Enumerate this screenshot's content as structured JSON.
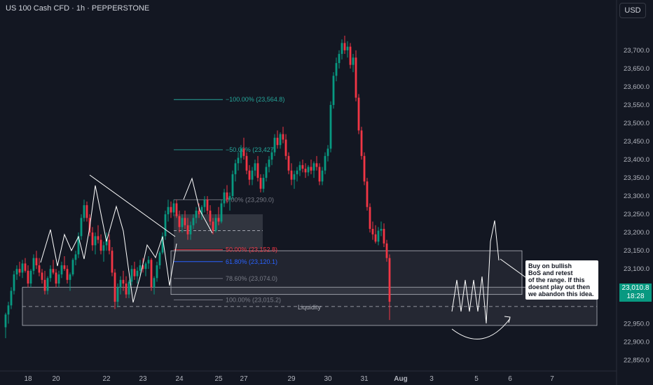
{
  "header": {
    "title": "US 100 Cash CFD · 1h · PEPPERSTONE"
  },
  "controls": {
    "currency": "USD"
  },
  "price_tag": {
    "price": "23,010.8",
    "countdown": "18:28"
  },
  "colors": {
    "background": "#131722",
    "up": "#089981",
    "down": "#f23645",
    "fib_teal": "#26a69a",
    "fib_red": "#f23645",
    "fib_gray": "#787b86"
  },
  "annotations": {
    "note": [
      "Buy on bullish",
      "BoS and retest",
      "of the range. If this",
      "doesnt play out then",
      "we abandon this idea."
    ],
    "liquidity": "Liquidity"
  },
  "chart_data": {
    "type": "candlestick",
    "ylim": [
      22820,
      23790
    ],
    "y_ticks": [
      {
        "value": 23700,
        "label": "23,700.0"
      },
      {
        "value": 23650,
        "label": "23,650.0"
      },
      {
        "value": 23600,
        "label": "23,600.0"
      },
      {
        "value": 23550,
        "label": "23,550.0"
      },
      {
        "value": 23500,
        "label": "23,500.0"
      },
      {
        "value": 23450,
        "label": "23,450.0"
      },
      {
        "value": 23400,
        "label": "23,400.0"
      },
      {
        "value": 23350,
        "label": "23,350.0"
      },
      {
        "value": 23300,
        "label": "23,300.0"
      },
      {
        "value": 23250,
        "label": "23,250.0"
      },
      {
        "value": 23200,
        "label": "23,200.0"
      },
      {
        "value": 23150,
        "label": "23,150.0"
      },
      {
        "value": 23100,
        "label": "23,100.0"
      },
      {
        "value": 23050,
        "label": "23,050.0"
      },
      {
        "value": 22950,
        "label": "22,950.0"
      },
      {
        "value": 22900,
        "label": "22,900.0"
      },
      {
        "value": 22850,
        "label": "22,850.0"
      }
    ],
    "x_ticks": [
      {
        "index": 8,
        "label": "18",
        "bold": false
      },
      {
        "index": 18,
        "label": "20",
        "bold": false
      },
      {
        "index": 36,
        "label": "22",
        "bold": false
      },
      {
        "index": 49,
        "label": "23",
        "bold": false
      },
      {
        "index": 62,
        "label": "24",
        "bold": false
      },
      {
        "index": 76,
        "label": "25",
        "bold": false
      },
      {
        "index": 85,
        "label": "27",
        "bold": false
      },
      {
        "index": 102,
        "label": "29",
        "bold": false
      },
      {
        "index": 115,
        "label": "30",
        "bold": false
      },
      {
        "index": 128,
        "label": "31",
        "bold": false
      },
      {
        "index": 141,
        "label": "Aug",
        "bold": true
      },
      {
        "index": 152,
        "label": "3",
        "bold": false
      },
      {
        "index": 168,
        "label": "5",
        "bold": false
      },
      {
        "index": 180,
        "label": "6",
        "bold": false
      },
      {
        "index": 195,
        "label": "7",
        "bold": false
      }
    ],
    "fib_levels": [
      {
        "ratio_label": "−100.00%",
        "value": 23564.8,
        "text": "(23,564.8)",
        "color": "#26a69a",
        "tone": "teal"
      },
      {
        "ratio_label": "−50.00%",
        "value": 23427,
        "text": "(23,427",
        "color": "#26a69a",
        "tone": "teal"
      },
      {
        "ratio_label": "0.00%",
        "value": 23290,
        "text": "(23,290.0)",
        "color": "#787b86",
        "tone": "gray"
      },
      {
        "ratio_label": "50.00%",
        "value": 23152.8,
        "text": "(23,152.8)",
        "color": "#f23645",
        "tone": "red"
      },
      {
        "ratio_label": "61.80%",
        "value": 23120.1,
        "text": "(23,120.1)",
        "color": "#2962ff",
        "tone": "blue"
      },
      {
        "ratio_label": "78.60%",
        "value": 23074.0,
        "text": "(23,074.0)",
        "color": "#787b86",
        "tone": "gray"
      },
      {
        "ratio_label": "100.00%",
        "value": 23015.2,
        "text": "(23,015.2)",
        "color": "#787b86",
        "tone": "gray"
      }
    ],
    "candles": [
      [
        22940,
        22980,
        22910,
        22975
      ],
      [
        22975,
        23010,
        22950,
        23000
      ],
      [
        23000,
        23050,
        22990,
        23040
      ],
      [
        23040,
        23095,
        23030,
        23085
      ],
      [
        23085,
        23110,
        23070,
        23100
      ],
      [
        23100,
        23120,
        23080,
        23090
      ],
      [
        23090,
        23125,
        23075,
        23115
      ],
      [
        23115,
        23130,
        23090,
        23095
      ],
      [
        23095,
        23110,
        23050,
        23060
      ],
      [
        23060,
        23100,
        23050,
        23095
      ],
      [
        23095,
        23140,
        23085,
        23130
      ],
      [
        23130,
        23150,
        23100,
        23110
      ],
      [
        23110,
        23130,
        23080,
        23090
      ],
      [
        23090,
        23100,
        23060,
        23070
      ],
      [
        23070,
        23095,
        23030,
        23040
      ],
      [
        23040,
        23080,
        23030,
        23075
      ],
      [
        23075,
        23110,
        23065,
        23100
      ],
      [
        23100,
        23125,
        23085,
        23090
      ],
      [
        23090,
        23100,
        23050,
        23060
      ],
      [
        23060,
        23095,
        23050,
        23085
      ],
      [
        23085,
        23120,
        23075,
        23110
      ],
      [
        23110,
        23135,
        23095,
        23100
      ],
      [
        23100,
        23110,
        23060,
        23070
      ],
      [
        23070,
        23090,
        23040,
        23085
      ],
      [
        23085,
        23130,
        23080,
        23125
      ],
      [
        23125,
        23150,
        23110,
        23140
      ],
      [
        23140,
        23200,
        23130,
        23190
      ],
      [
        23190,
        23250,
        23180,
        23240
      ],
      [
        23240,
        23290,
        23230,
        23275
      ],
      [
        23275,
        23285,
        23230,
        23240
      ],
      [
        23240,
        23250,
        23190,
        23200
      ],
      [
        23200,
        23215,
        23150,
        23165
      ],
      [
        23165,
        23200,
        23140,
        23190
      ],
      [
        23190,
        23220,
        23170,
        23180
      ],
      [
        23180,
        23195,
        23140,
        23150
      ],
      [
        23150,
        23175,
        23120,
        23165
      ],
      [
        23165,
        23200,
        23150,
        23180
      ],
      [
        23180,
        23195,
        23140,
        23150
      ],
      [
        23150,
        23160,
        23080,
        23090
      ],
      [
        23090,
        23100,
        22990,
        23010
      ],
      [
        23010,
        23060,
        22995,
        23050
      ],
      [
        23050,
        23080,
        23030,
        23070
      ],
      [
        23070,
        23095,
        23040,
        23060
      ],
      [
        23060,
        23080,
        23020,
        23030
      ],
      [
        23030,
        23070,
        23020,
        23065
      ],
      [
        23065,
        23110,
        23055,
        23100
      ],
      [
        23100,
        23120,
        23070,
        23080
      ],
      [
        23080,
        23105,
        23060,
        23095
      ],
      [
        23095,
        23125,
        23080,
        23110
      ],
      [
        23110,
        23130,
        23090,
        23100
      ],
      [
        23100,
        23120,
        23080,
        23115
      ],
      [
        23115,
        23135,
        23100,
        23125
      ],
      [
        23125,
        23130,
        23040,
        23050
      ],
      [
        23050,
        23080,
        23030,
        23075
      ],
      [
        23075,
        23120,
        23065,
        23110
      ],
      [
        23110,
        23150,
        23100,
        23145
      ],
      [
        23145,
        23200,
        23140,
        23190
      ],
      [
        23190,
        23260,
        23180,
        23250
      ],
      [
        23250,
        23290,
        23230,
        23270
      ],
      [
        23270,
        23285,
        23240,
        23255
      ],
      [
        23255,
        23290,
        23245,
        23280
      ],
      [
        23280,
        23290,
        23240,
        23245
      ],
      [
        23245,
        23260,
        23200,
        23215
      ],
      [
        23215,
        23250,
        23200,
        23240
      ],
      [
        23240,
        23260,
        23210,
        23220
      ],
      [
        23220,
        23240,
        23180,
        23195
      ],
      [
        23195,
        23230,
        23180,
        23220
      ],
      [
        23220,
        23250,
        23210,
        23240
      ],
      [
        23240,
        23270,
        23225,
        23260
      ],
      [
        23260,
        23280,
        23240,
        23250
      ],
      [
        23250,
        23275,
        23235,
        23270
      ],
      [
        23270,
        23300,
        23255,
        23290
      ],
      [
        23290,
        23300,
        23250,
        23260
      ],
      [
        23260,
        23275,
        23220,
        23230
      ],
      [
        23230,
        23240,
        23195,
        23205
      ],
      [
        23205,
        23250,
        23200,
        23240
      ],
      [
        23240,
        23270,
        23220,
        23230
      ],
      [
        23230,
        23290,
        23225,
        23280
      ],
      [
        23280,
        23320,
        23270,
        23310
      ],
      [
        23310,
        23330,
        23280,
        23290
      ],
      [
        23290,
        23310,
        23260,
        23300
      ],
      [
        23300,
        23370,
        23290,
        23360
      ],
      [
        23360,
        23400,
        23340,
        23390
      ],
      [
        23390,
        23420,
        23370,
        23405
      ],
      [
        23405,
        23440,
        23390,
        23430
      ],
      [
        23430,
        23460,
        23400,
        23410
      ],
      [
        23410,
        23420,
        23360,
        23370
      ],
      [
        23370,
        23385,
        23330,
        23345
      ],
      [
        23345,
        23380,
        23330,
        23370
      ],
      [
        23370,
        23400,
        23355,
        23390
      ],
      [
        23390,
        23410,
        23340,
        23350
      ],
      [
        23350,
        23360,
        23310,
        23320
      ],
      [
        23320,
        23360,
        23310,
        23350
      ],
      [
        23350,
        23390,
        23340,
        23380
      ],
      [
        23380,
        23410,
        23365,
        23400
      ],
      [
        23400,
        23430,
        23385,
        23420
      ],
      [
        23420,
        23470,
        23410,
        23460
      ],
      [
        23460,
        23480,
        23430,
        23440
      ],
      [
        23440,
        23475,
        23430,
        23470
      ],
      [
        23470,
        23490,
        23445,
        23455
      ],
      [
        23455,
        23470,
        23400,
        23410
      ],
      [
        23410,
        23420,
        23360,
        23370
      ],
      [
        23370,
        23390,
        23330,
        23345
      ],
      [
        23345,
        23370,
        23320,
        23360
      ],
      [
        23360,
        23380,
        23340,
        23370
      ],
      [
        23370,
        23395,
        23355,
        23385
      ],
      [
        23385,
        23400,
        23365,
        23375
      ],
      [
        23375,
        23390,
        23350,
        23365
      ],
      [
        23365,
        23385,
        23355,
        23380
      ],
      [
        23380,
        23400,
        23360,
        23370
      ],
      [
        23370,
        23395,
        23350,
        23390
      ],
      [
        23390,
        23410,
        23370,
        23380
      ],
      [
        23380,
        23390,
        23330,
        23340
      ],
      [
        23340,
        23380,
        23330,
        23370
      ],
      [
        23370,
        23420,
        23360,
        23410
      ],
      [
        23410,
        23440,
        23395,
        23430
      ],
      [
        23430,
        23560,
        23420,
        23550
      ],
      [
        23550,
        23640,
        23540,
        23630
      ],
      [
        23630,
        23680,
        23615,
        23665
      ],
      [
        23665,
        23700,
        23650,
        23690
      ],
      [
        23690,
        23730,
        23675,
        23720
      ],
      [
        23720,
        23740,
        23690,
        23700
      ],
      [
        23700,
        23725,
        23680,
        23710
      ],
      [
        23710,
        23720,
        23650,
        23660
      ],
      [
        23660,
        23690,
        23640,
        23680
      ],
      [
        23680,
        23700,
        23560,
        23570
      ],
      [
        23570,
        23580,
        23470,
        23480
      ],
      [
        23480,
        23490,
        23400,
        23410
      ],
      [
        23410,
        23420,
        23330,
        23340
      ],
      [
        23340,
        23350,
        23260,
        23270
      ],
      [
        23270,
        23280,
        23200,
        23210
      ],
      [
        23210,
        23230,
        23180,
        23195
      ],
      [
        23195,
        23220,
        23170,
        23175
      ],
      [
        23175,
        23215,
        23165,
        23205
      ],
      [
        23205,
        23230,
        23190,
        23210
      ],
      [
        23210,
        23225,
        23160,
        23170
      ],
      [
        23170,
        23180,
        23120,
        23130
      ],
      [
        23130,
        23140,
        22960,
        23010
      ]
    ]
  }
}
